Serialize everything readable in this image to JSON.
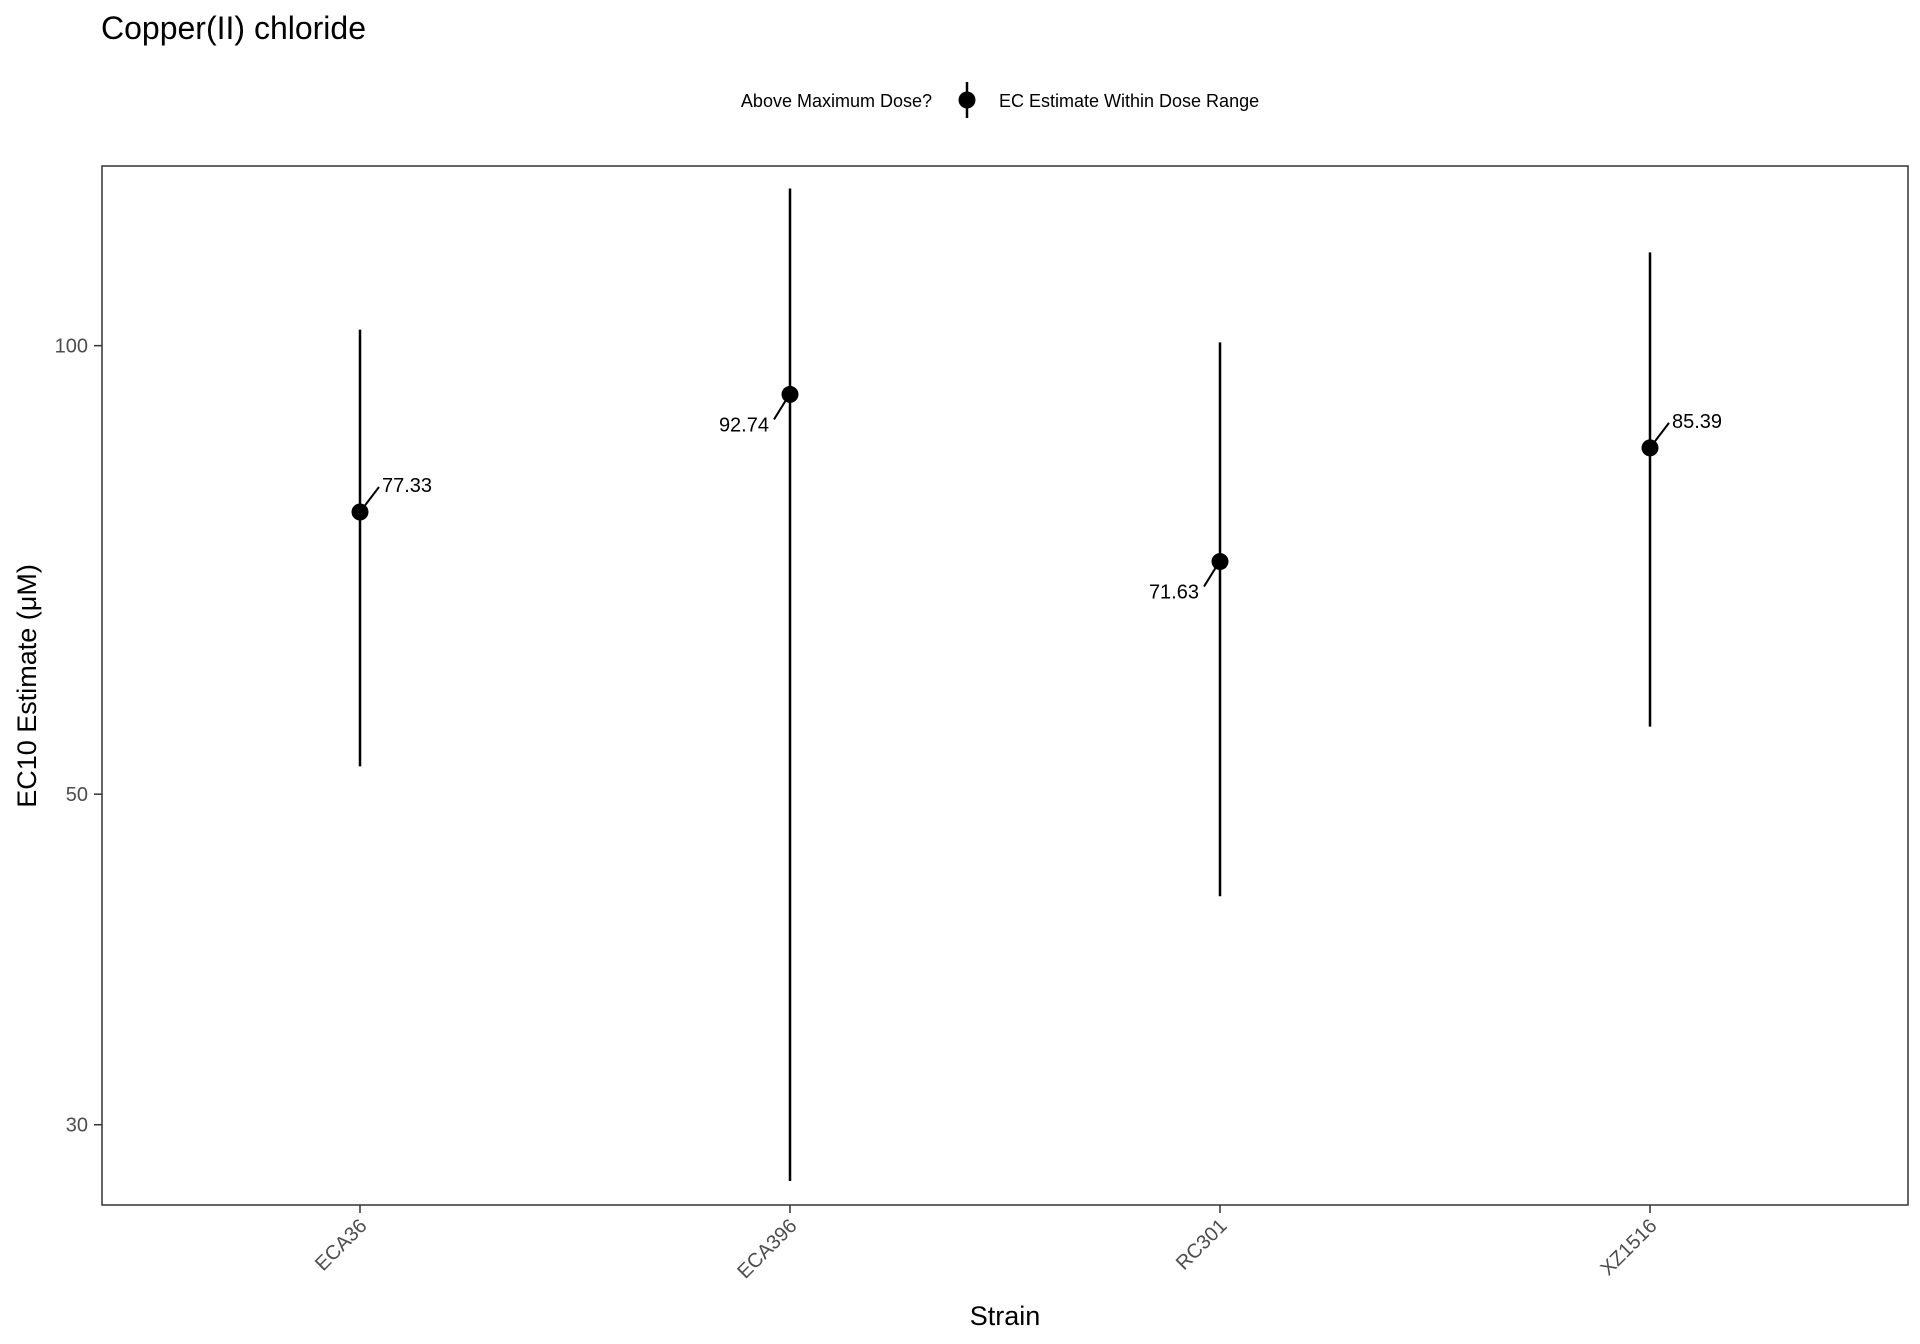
{
  "chart_data": {
    "type": "scatter",
    "title": "Copper(II) chloride",
    "xlabel": "Strain",
    "ylabel": "EC10 Estimate (μM)",
    "y_scale": "log",
    "ylim": [
      26.5,
      132
    ],
    "y_ticks": [
      30,
      50,
      100
    ],
    "grid": false,
    "legend": {
      "placement": "top",
      "title": "Above Maximum Dose?",
      "entries": [
        "EC Estimate Within Dose Range"
      ]
    },
    "categories": [
      "ECA36",
      "ECA396",
      "RC301",
      "XZ1516"
    ],
    "points": [
      {
        "strain": "ECA36",
        "value": 77.33,
        "label": "77.33",
        "lower": 52.2,
        "upper": 102.5,
        "label_side": "right"
      },
      {
        "strain": "ECA396",
        "value": 92.74,
        "label": "92.74",
        "lower": 27.5,
        "upper": 127.5,
        "label_side": "left"
      },
      {
        "strain": "RC301",
        "value": 71.63,
        "label": "71.63",
        "lower": 42.7,
        "upper": 100.5,
        "label_side": "left"
      },
      {
        "strain": "XZ1516",
        "value": 85.39,
        "label": "85.39",
        "lower": 55.5,
        "upper": 115.5,
        "label_side": "right"
      }
    ]
  }
}
